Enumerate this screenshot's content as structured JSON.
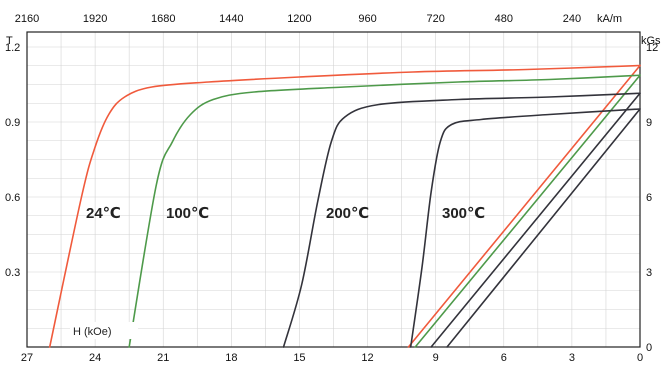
{
  "chart_data": {
    "type": "line",
    "title": "",
    "grid": true,
    "axes": {
      "bottom": {
        "label": "H (kOe)",
        "range": [
          27,
          0
        ],
        "ticks": [
          27,
          24,
          21,
          18,
          15,
          12,
          9,
          6,
          3,
          0
        ]
      },
      "top": {
        "label": "kA/m",
        "range": [
          2160,
          0
        ],
        "ticks": [
          2160,
          1920,
          1680,
          1440,
          1200,
          960,
          720,
          480,
          240
        ]
      },
      "left": {
        "label": "T",
        "range": [
          0,
          1.26
        ],
        "ticks": [
          "0.3",
          "0.6",
          "0.9",
          "1.2"
        ]
      },
      "right": {
        "label": "kGs",
        "range": [
          0,
          12.6
        ],
        "ticks": [
          0,
          3,
          6,
          9,
          12
        ]
      }
    },
    "series": [
      {
        "name": "24℃",
        "color": "#f05a3c",
        "intrinsic": [
          [
            26.0,
            0
          ],
          [
            24.6,
            0.6
          ],
          [
            24.0,
            0.8
          ],
          [
            23.4,
            0.93
          ],
          [
            22.7,
            1.0
          ],
          [
            21.5,
            1.04
          ],
          [
            19,
            1.06
          ],
          [
            15,
            1.08
          ],
          [
            10,
            1.1
          ],
          [
            5,
            1.11
          ],
          [
            0,
            1.126
          ]
        ],
        "normal": [
          [
            10.2,
            0
          ],
          [
            0,
            1.126
          ]
        ]
      },
      {
        "name": "100℃",
        "color": "#4e9a4a",
        "intrinsic": [
          [
            22.5,
            0
          ],
          [
            21.3,
            0.65
          ],
          [
            20.6,
            0.82
          ],
          [
            19.8,
            0.93
          ],
          [
            18.8,
            0.99
          ],
          [
            17,
            1.02
          ],
          [
            13,
            1.04
          ],
          [
            8,
            1.06
          ],
          [
            4,
            1.07
          ],
          [
            0,
            1.087
          ]
        ],
        "normal": [
          [
            9.9,
            0
          ],
          [
            0,
            1.087
          ]
        ]
      },
      {
        "name": "200℃",
        "color": "#33333b",
        "intrinsic": [
          [
            15.7,
            0
          ],
          [
            14.9,
            0.25
          ],
          [
            14.2,
            0.58
          ],
          [
            13.6,
            0.82
          ],
          [
            13.0,
            0.92
          ],
          [
            11.5,
            0.97
          ],
          [
            8,
            0.99
          ],
          [
            4,
            1.0
          ],
          [
            0,
            1.015
          ]
        ],
        "normal": [
          [
            9.2,
            0
          ],
          [
            0,
            1.015
          ]
        ]
      },
      {
        "name": "300℃",
        "color": "#33333b",
        "intrinsic": [
          [
            10.1,
            0
          ],
          [
            9.6,
            0.32
          ],
          [
            9.2,
            0.62
          ],
          [
            8.8,
            0.82
          ],
          [
            8.3,
            0.89
          ],
          [
            7,
            0.91
          ],
          [
            4,
            0.93
          ],
          [
            0,
            0.952
          ]
        ],
        "normal": [
          [
            8.5,
            0
          ],
          [
            0,
            0.952
          ]
        ]
      }
    ],
    "annotations": [
      "24℃",
      "100℃",
      "200℃",
      "300℃"
    ]
  }
}
